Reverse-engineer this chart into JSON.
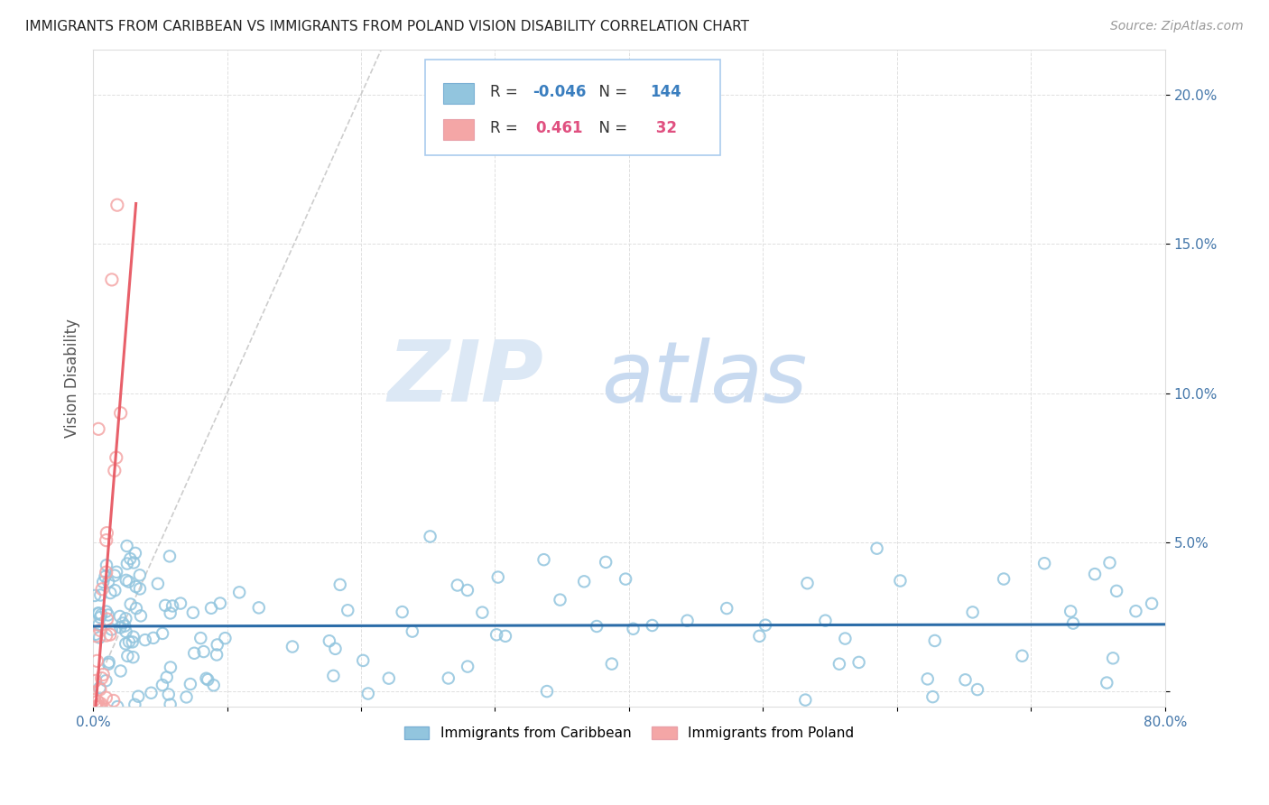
{
  "title": "IMMIGRANTS FROM CARIBBEAN VS IMMIGRANTS FROM POLAND VISION DISABILITY CORRELATION CHART",
  "source": "Source: ZipAtlas.com",
  "ylabel": "Vision Disability",
  "xlim": [
    0.0,
    0.8
  ],
  "ylim": [
    -0.005,
    0.215
  ],
  "x_ticks": [
    0.0,
    0.1,
    0.2,
    0.3,
    0.4,
    0.5,
    0.6,
    0.7,
    0.8
  ],
  "y_ticks": [
    0.0,
    0.05,
    0.1,
    0.15,
    0.2
  ],
  "y_tick_labels": [
    "",
    "5.0%",
    "10.0%",
    "15.0%",
    "20.0%"
  ],
  "legend_r_caribbean": "-0.046",
  "legend_n_caribbean": "144",
  "legend_r_poland": "0.461",
  "legend_n_poland": "32",
  "color_caribbean": "#92c5de",
  "color_poland": "#f4a6a6",
  "color_trendline_caribbean": "#2b6ca8",
  "color_trendline_poland": "#e8606a",
  "color_diagonal": "#c8c8c8",
  "color_r_caribbean": "#3a7ebf",
  "color_r_poland": "#e05080",
  "watermark_zip": "ZIP",
  "watermark_atlas": "atlas",
  "background_color": "#ffffff",
  "grid_color": "#e0e0e0"
}
